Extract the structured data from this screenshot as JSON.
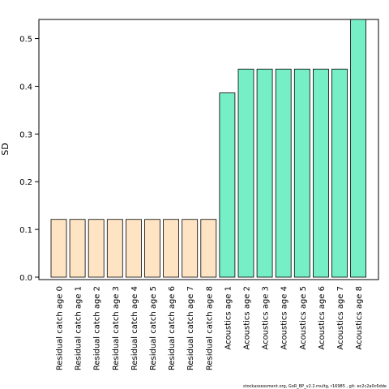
{
  "chart_data": {
    "type": "bar",
    "ylabel": "SD",
    "ylim": [
      0,
      0.54
    ],
    "yticks": [
      0.0,
      0.1,
      0.2,
      0.3,
      0.4,
      0.5
    ],
    "ytick_labels": [
      "0.0",
      "0.1",
      "0.2",
      "0.3",
      "0.4",
      "0.5"
    ],
    "categories": [
      "Residual catch age 0",
      "Residual catch age 1",
      "Residual catch age 2",
      "Residual catch age 3",
      "Residual catch age 4",
      "Residual catch age 5",
      "Residual catch age 6",
      "Residual catch age 7",
      "Residual catch age 8",
      "Acoustics age 1",
      "Acoustics age 2",
      "Acoustics age 3",
      "Acoustics age 4",
      "Acoustics age 5",
      "Acoustics age 6",
      "Acoustics age 7",
      "Acoustics age 8"
    ],
    "values": [
      0.121,
      0.121,
      0.121,
      0.121,
      0.121,
      0.121,
      0.121,
      0.121,
      0.121,
      0.386,
      0.436,
      0.436,
      0.436,
      0.436,
      0.436,
      0.436,
      0.54
    ],
    "colors": [
      "#FFE4C4",
      "#FFE4C4",
      "#FFE4C4",
      "#FFE4C4",
      "#FFE4C4",
      "#FFE4C4",
      "#FFE4C4",
      "#FFE4C4",
      "#FFE4C4",
      "#76EEC6",
      "#76EEC6",
      "#76EEC6",
      "#76EEC6",
      "#76EEC6",
      "#76EEC6",
      "#76EEC6",
      "#76EEC6"
    ],
    "grid": false
  },
  "footer": "stockassessment.org, GoR_BP_v2.2.multg, r16985 , git: ec2c2a0c6dde"
}
